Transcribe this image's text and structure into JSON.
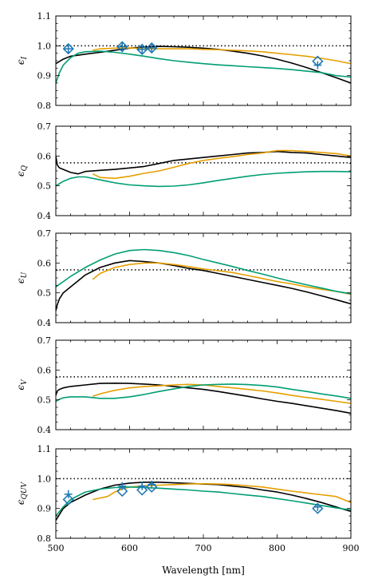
{
  "chart_data": [
    {
      "type": "line",
      "ylabel": "ϵI",
      "ylabel_main": "ϵ",
      "ylabel_sub": "I",
      "xlim": [
        500,
        900
      ],
      "ylim": [
        0.8,
        1.1
      ],
      "yticks": [
        "0.8",
        "0.9",
        "1.0",
        "1.1"
      ],
      "reference": 1.0,
      "series": [
        {
          "color": "#000000",
          "x": [
            500,
            510,
            520,
            540,
            560,
            580,
            600,
            620,
            640,
            660,
            680,
            700,
            720,
            740,
            760,
            780,
            800,
            820,
            840,
            860,
            880,
            900
          ],
          "y": [
            0.94,
            0.955,
            0.965,
            0.972,
            0.978,
            0.985,
            0.992,
            0.996,
            0.998,
            0.997,
            0.995,
            0.992,
            0.988,
            0.982,
            0.975,
            0.966,
            0.955,
            0.942,
            0.927,
            0.91,
            0.893,
            0.875
          ]
        },
        {
          "color": "#E69F00",
          "x": [
            550,
            560,
            580,
            600,
            620,
            640,
            660,
            680,
            700,
            720,
            740,
            760,
            780,
            800,
            820,
            840,
            860,
            880,
            900
          ],
          "y": [
            0.985,
            0.99,
            0.992,
            0.993,
            0.99,
            0.99,
            0.99,
            0.99,
            0.988,
            0.987,
            0.985,
            0.983,
            0.98,
            0.975,
            0.97,
            0.965,
            0.958,
            0.95,
            0.94
          ]
        },
        {
          "color": "#009E73",
          "x": [
            500,
            505,
            510,
            520,
            530,
            540,
            560,
            580,
            600,
            620,
            640,
            660,
            680,
            700,
            720,
            740,
            760,
            780,
            800,
            820,
            840,
            860,
            880,
            900
          ],
          "y": [
            0.875,
            0.91,
            0.935,
            0.96,
            0.975,
            0.98,
            0.982,
            0.978,
            0.972,
            0.965,
            0.957,
            0.95,
            0.945,
            0.94,
            0.936,
            0.933,
            0.93,
            0.927,
            0.924,
            0.92,
            0.915,
            0.91,
            0.9,
            0.895
          ]
        }
      ],
      "markers": {
        "color": "#1F78B4",
        "x": [
          517,
          590,
          617,
          630,
          855
        ],
        "diamond": [
          0.99,
          0.997,
          0.988,
          0.993,
          0.948
        ],
        "plus": [
          0.99,
          0.997,
          0.988,
          0.993,
          0.935
        ]
      }
    },
    {
      "type": "line",
      "ylabel": "ϵQ",
      "ylabel_main": "ϵ",
      "ylabel_sub": "Q",
      "xlim": [
        500,
        900
      ],
      "ylim": [
        0.4,
        0.7
      ],
      "yticks": [
        "0.4",
        "0.5",
        "0.6",
        "0.7"
      ],
      "reference": 0.577,
      "series": [
        {
          "color": "#000000",
          "x": [
            500,
            502,
            505,
            510,
            520,
            530,
            540,
            560,
            580,
            600,
            620,
            640,
            660,
            680,
            700,
            720,
            740,
            760,
            780,
            800,
            820,
            840,
            860,
            880,
            900
          ],
          "y": [
            0.6,
            0.57,
            0.56,
            0.555,
            0.545,
            0.54,
            0.548,
            0.552,
            0.555,
            0.56,
            0.565,
            0.575,
            0.585,
            0.59,
            0.595,
            0.6,
            0.605,
            0.61,
            0.612,
            0.615,
            0.612,
            0.61,
            0.605,
            0.6,
            0.595
          ]
        },
        {
          "color": "#E69F00",
          "x": [
            550,
            560,
            580,
            600,
            620,
            640,
            660,
            680,
            700,
            720,
            740,
            760,
            780,
            800,
            820,
            840,
            860,
            880,
            900
          ],
          "y": [
            0.54,
            0.528,
            0.525,
            0.532,
            0.542,
            0.55,
            0.562,
            0.575,
            0.585,
            0.592,
            0.598,
            0.605,
            0.61,
            0.618,
            0.618,
            0.615,
            0.612,
            0.608,
            0.6
          ]
        },
        {
          "color": "#009E73",
          "x": [
            500,
            510,
            520,
            530,
            540,
            560,
            580,
            600,
            620,
            640,
            660,
            680,
            700,
            720,
            740,
            760,
            780,
            800,
            820,
            840,
            860,
            880,
            900
          ],
          "y": [
            0.5,
            0.515,
            0.525,
            0.53,
            0.53,
            0.52,
            0.51,
            0.503,
            0.5,
            0.498,
            0.499,
            0.503,
            0.51,
            0.518,
            0.525,
            0.532,
            0.538,
            0.542,
            0.545,
            0.547,
            0.548,
            0.548,
            0.547
          ]
        }
      ]
    },
    {
      "type": "line",
      "ylabel": "ϵU",
      "ylabel_main": "ϵ",
      "ylabel_sub": "U",
      "xlim": [
        500,
        900
      ],
      "ylim": [
        0.4,
        0.7
      ],
      "yticks": [
        "0.4",
        "0.5",
        "0.6",
        "0.7"
      ],
      "reference": 0.577,
      "series": [
        {
          "color": "#000000",
          "x": [
            500,
            502,
            505,
            510,
            520,
            530,
            540,
            560,
            580,
            600,
            620,
            640,
            660,
            680,
            700,
            720,
            740,
            760,
            780,
            800,
            820,
            840,
            860,
            880,
            900
          ],
          "y": [
            0.44,
            0.46,
            0.48,
            0.5,
            0.52,
            0.54,
            0.56,
            0.585,
            0.6,
            0.608,
            0.605,
            0.6,
            0.592,
            0.582,
            0.575,
            0.565,
            0.555,
            0.545,
            0.535,
            0.525,
            0.515,
            0.503,
            0.49,
            0.477,
            0.463
          ]
        },
        {
          "color": "#E69F00",
          "x": [
            550,
            560,
            580,
            600,
            620,
            640,
            660,
            680,
            700,
            720,
            740,
            760,
            780,
            800,
            820,
            840,
            860,
            880,
            900
          ],
          "y": [
            0.545,
            0.565,
            0.585,
            0.595,
            0.6,
            0.6,
            0.595,
            0.588,
            0.58,
            0.574,
            0.568,
            0.558,
            0.548,
            0.538,
            0.53,
            0.52,
            0.512,
            0.505,
            0.495
          ]
        },
        {
          "color": "#009E73",
          "x": [
            500,
            520,
            540,
            560,
            580,
            600,
            620,
            640,
            660,
            680,
            700,
            720,
            740,
            760,
            780,
            800,
            820,
            840,
            860,
            880,
            900
          ],
          "y": [
            0.52,
            0.555,
            0.585,
            0.61,
            0.63,
            0.642,
            0.645,
            0.642,
            0.635,
            0.625,
            0.612,
            0.6,
            0.588,
            0.575,
            0.563,
            0.55,
            0.538,
            0.527,
            0.516,
            0.505,
            0.497
          ]
        }
      ]
    },
    {
      "type": "line",
      "ylabel": "ϵV",
      "ylabel_main": "ϵ",
      "ylabel_sub": "V",
      "xlim": [
        500,
        900
      ],
      "ylim": [
        0.4,
        0.7
      ],
      "yticks": [
        "0.4",
        "0.5",
        "0.6",
        "0.7"
      ],
      "reference": 0.577,
      "series": [
        {
          "color": "#000000",
          "x": [
            500,
            502,
            505,
            510,
            520,
            540,
            560,
            580,
            600,
            620,
            640,
            660,
            680,
            700,
            720,
            740,
            760,
            780,
            800,
            820,
            840,
            860,
            880,
            900
          ],
          "y": [
            0.515,
            0.53,
            0.535,
            0.54,
            0.545,
            0.55,
            0.555,
            0.556,
            0.555,
            0.553,
            0.55,
            0.545,
            0.54,
            0.535,
            0.528,
            0.52,
            0.512,
            0.503,
            0.495,
            0.488,
            0.48,
            0.472,
            0.464,
            0.455
          ]
        },
        {
          "color": "#E69F00",
          "x": [
            550,
            560,
            580,
            600,
            620,
            640,
            660,
            680,
            700,
            720,
            740,
            760,
            780,
            800,
            820,
            840,
            860,
            880,
            900
          ],
          "y": [
            0.512,
            0.52,
            0.532,
            0.54,
            0.545,
            0.547,
            0.55,
            0.552,
            0.55,
            0.545,
            0.54,
            0.535,
            0.53,
            0.523,
            0.515,
            0.508,
            0.502,
            0.495,
            0.488
          ]
        },
        {
          "color": "#009E73",
          "x": [
            500,
            505,
            510,
            520,
            540,
            560,
            580,
            600,
            620,
            640,
            660,
            680,
            700,
            720,
            740,
            760,
            780,
            800,
            820,
            840,
            860,
            880,
            900
          ],
          "y": [
            0.495,
            0.502,
            0.507,
            0.51,
            0.51,
            0.505,
            0.505,
            0.51,
            0.518,
            0.528,
            0.537,
            0.545,
            0.55,
            0.552,
            0.553,
            0.551,
            0.548,
            0.543,
            0.535,
            0.528,
            0.52,
            0.513,
            0.505
          ]
        }
      ]
    },
    {
      "type": "line",
      "ylabel": "ϵQUV",
      "ylabel_main": "ϵ",
      "ylabel_sub": "QUV",
      "xlabel": "Wavelength [nm]",
      "xlim": [
        500,
        900
      ],
      "ylim": [
        0.8,
        1.1
      ],
      "yticks": [
        "0.8",
        "0.9",
        "1.0",
        "1.1"
      ],
      "xticks": [
        "500",
        "600",
        "700",
        "800",
        "900"
      ],
      "reference": 1.0,
      "series": [
        {
          "color": "#000000",
          "x": [
            500,
            505,
            510,
            520,
            540,
            560,
            580,
            600,
            620,
            640,
            660,
            680,
            700,
            720,
            740,
            760,
            780,
            800,
            820,
            840,
            860,
            880,
            900
          ],
          "y": [
            0.86,
            0.88,
            0.9,
            0.92,
            0.945,
            0.965,
            0.978,
            0.985,
            0.988,
            0.988,
            0.986,
            0.984,
            0.982,
            0.98,
            0.975,
            0.97,
            0.962,
            0.955,
            0.945,
            0.933,
            0.92,
            0.905,
            0.89
          ]
        },
        {
          "color": "#E69F00",
          "x": [
            550,
            560,
            570,
            580,
            590,
            600,
            620,
            640,
            660,
            680,
            700,
            720,
            740,
            760,
            780,
            800,
            820,
            840,
            860,
            880,
            900
          ],
          "y": [
            0.93,
            0.935,
            0.94,
            0.955,
            0.965,
            0.972,
            0.976,
            0.978,
            0.98,
            0.982,
            0.983,
            0.982,
            0.98,
            0.976,
            0.972,
            0.965,
            0.958,
            0.952,
            0.946,
            0.94,
            0.92
          ]
        },
        {
          "color": "#009E73",
          "x": [
            500,
            510,
            520,
            540,
            560,
            580,
            600,
            620,
            640,
            660,
            680,
            700,
            720,
            740,
            760,
            780,
            800,
            820,
            840,
            860,
            880,
            900
          ],
          "y": [
            0.875,
            0.905,
            0.93,
            0.955,
            0.965,
            0.97,
            0.972,
            0.97,
            0.968,
            0.965,
            0.962,
            0.958,
            0.955,
            0.95,
            0.945,
            0.94,
            0.933,
            0.926,
            0.918,
            0.91,
            0.902,
            0.895
          ]
        }
      ],
      "markers": {
        "color": "#1F78B4",
        "x": [
          517,
          590,
          617,
          630,
          855
        ],
        "diamond": [
          0.93,
          0.958,
          0.962,
          0.972,
          0.9
        ],
        "plus": [
          0.948,
          0.975,
          0.975,
          0.98,
          0.905
        ]
      }
    }
  ]
}
